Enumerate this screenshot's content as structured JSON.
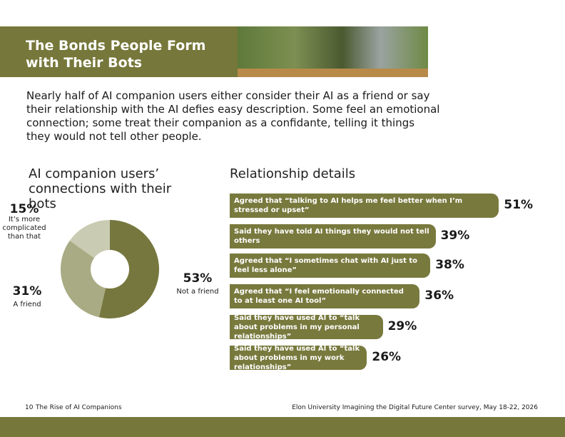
{
  "header": {
    "title": "The Bonds People Form with Their Bots"
  },
  "body": {
    "text": "Nearly half of AI companion users either consider their AI as a friend or say their relationship with the AI defies easy description. Some feel an emotional connection; some treat their companion as a confidante, telling it things they would not tell other people."
  },
  "chart_data": [
    {
      "type": "pie",
      "title": "AI companion users’ connections with their bots",
      "categories": [
        "Not a friend",
        "A friend",
        "It’s more complicated than that"
      ],
      "values": [
        53,
        31,
        15
      ],
      "value_labels": [
        "53%",
        "31%",
        "15%"
      ],
      "colors": [
        "#76773e",
        "#a9ab84",
        "#c9cbb2"
      ]
    },
    {
      "type": "bar",
      "title": "Relationship details",
      "orientation": "horizontal",
      "color": "#78793d",
      "categories": [
        "Agreed that “talking to AI helps me feel better when I’m stressed or upset”",
        "Said they have told AI things they would not tell others",
        "Agreed that “I sometimes chat with AI just to feel less alone”",
        "Agreed that “I feel emotionally connected to at least one AI tool”",
        "Said they have used AI to “talk about problems in my personal relationships”",
        "Said they have used AI to “talk about problems in my work relationships”"
      ],
      "values": [
        51,
        39,
        38,
        36,
        29,
        26
      ],
      "value_labels": [
        "51%",
        "39%",
        "38%",
        "36%",
        "29%",
        "26%"
      ]
    }
  ],
  "footer": {
    "page": "10",
    "section": "The Rise of AI Companions",
    "source": "Elon University Imagining the Digital Future Center survey, May 18-22, 2026"
  }
}
